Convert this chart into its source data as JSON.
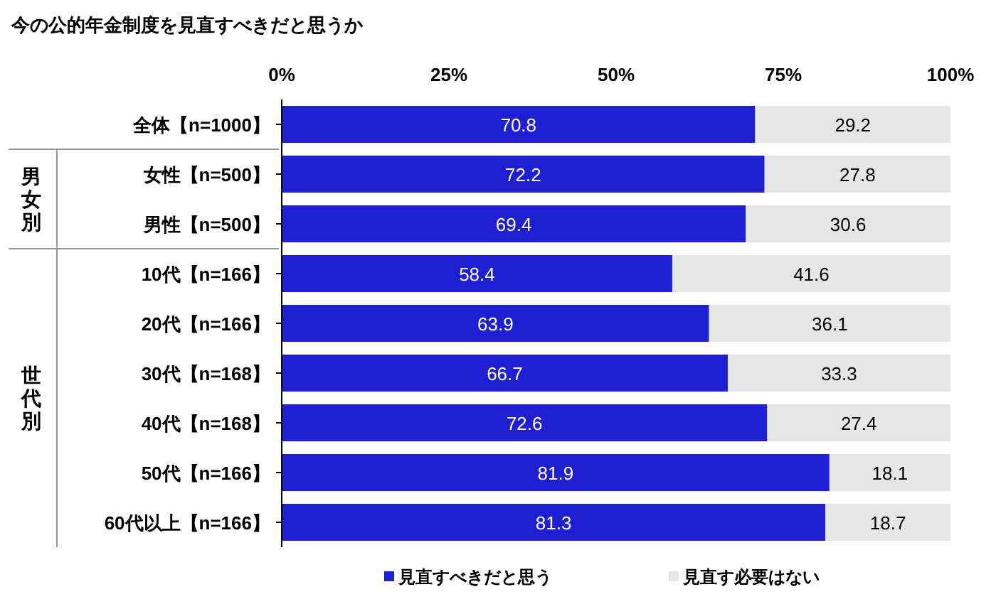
{
  "chart_data": {
    "type": "bar",
    "orientation": "horizontal",
    "stacked": true,
    "title": "今の公的年金制度を見直すべきだと思うか",
    "categories": [
      "全体【n=1000】",
      "女性【n=500】",
      "男性【n=500】",
      "10代【n=166】",
      "20代【n=166】",
      "30代【n=168】",
      "40代【n=168】",
      "50代【n=166】",
      "60代以上【n=166】"
    ],
    "series": [
      {
        "name": "見直すべきだと思う",
        "color": "#1e1ed2",
        "values": [
          70.8,
          72.2,
          69.4,
          58.4,
          63.9,
          66.7,
          72.6,
          81.9,
          81.3
        ]
      },
      {
        "name": "見直す必要はない",
        "color": "#e6e6e6",
        "values": [
          29.2,
          27.8,
          30.6,
          41.6,
          36.1,
          33.3,
          27.4,
          18.1,
          18.7
        ]
      }
    ],
    "xlim": [
      0,
      100
    ],
    "xticks": [
      {
        "value": 0,
        "label": "0%"
      },
      {
        "value": 25,
        "label": "25%"
      },
      {
        "value": 50,
        "label": "50%"
      },
      {
        "value": 75,
        "label": "75%"
      },
      {
        "value": 100,
        "label": "100%"
      }
    ],
    "annotations": [
      "男女別",
      "世代別"
    ],
    "data_labels": true,
    "legend": "bottom",
    "grid": false
  }
}
